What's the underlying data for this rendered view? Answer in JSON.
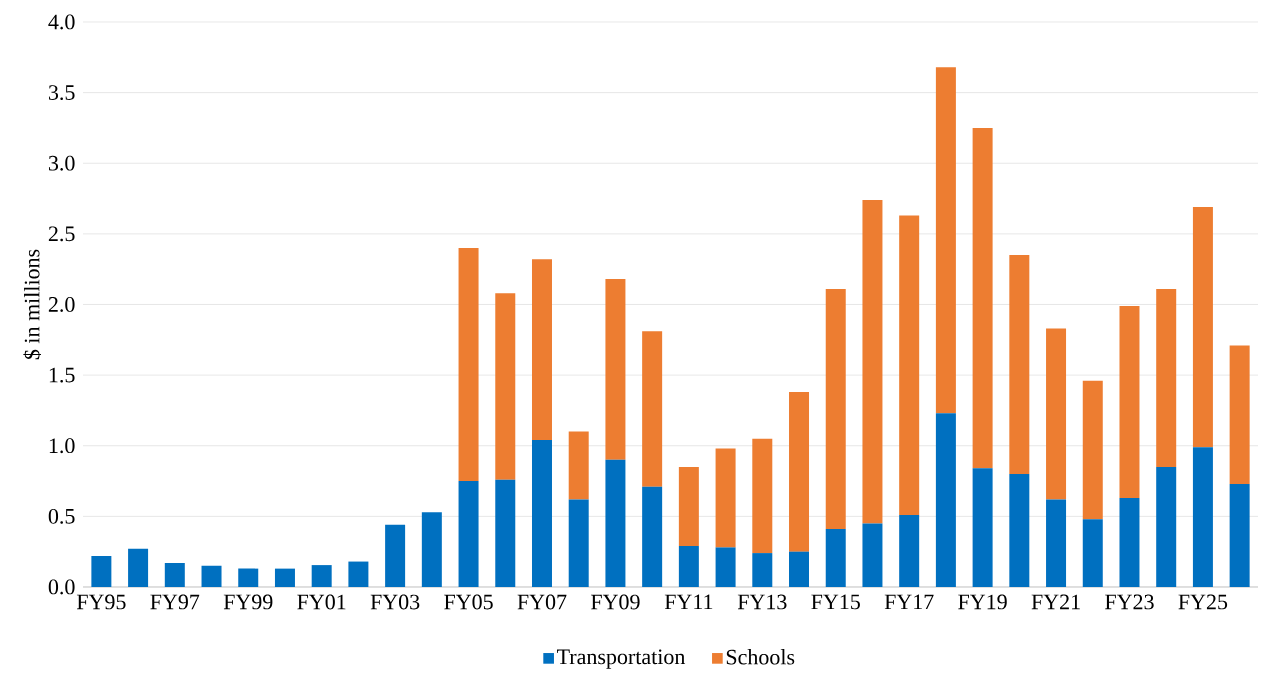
{
  "chart_data": {
    "type": "bar",
    "stacked": true,
    "ylabel": "$ in millions",
    "categories": [
      "FY95",
      null,
      "FY97",
      null,
      "FY99",
      null,
      "FY01",
      null,
      "FY03",
      null,
      "FY05",
      null,
      "FY07",
      null,
      "FY09",
      null,
      "FY11",
      null,
      "FY13",
      null,
      "FY15",
      null,
      "FY17",
      null,
      "FY19",
      null,
      "FY21",
      null,
      "FY23",
      null,
      "FY25",
      null
    ],
    "series": [
      {
        "name": "Transportation",
        "color": "#0070c0",
        "values": [
          0.22,
          0.27,
          0.17,
          0.15,
          0.13,
          0.13,
          0.155,
          0.18,
          0.44,
          0.53,
          0.75,
          0.76,
          1.04,
          0.62,
          0.9,
          0.71,
          0.29,
          0.28,
          0.24,
          0.25,
          0.41,
          0.45,
          0.51,
          1.23,
          0.84,
          0.8,
          0.62,
          0.48,
          0.63,
          0.85,
          0.99,
          0.73
        ]
      },
      {
        "name": "Schools",
        "color": "#ed7d31",
        "values": [
          null,
          null,
          null,
          null,
          null,
          null,
          null,
          null,
          null,
          null,
          1.65,
          1.32,
          1.28,
          0.48,
          1.28,
          1.1,
          0.56,
          0.7,
          0.81,
          1.13,
          1.7,
          2.29,
          2.12,
          2.45,
          2.41,
          1.55,
          1.21,
          0.98,
          1.36,
          1.26,
          1.7,
          0.98
        ]
      }
    ],
    "ylim": [
      0,
      4.0
    ],
    "yticks": [
      {
        "value": 0,
        "label": "0.0"
      },
      {
        "value": 0.5,
        "label": "0.5"
      },
      {
        "value": 1.0,
        "label": "1.0"
      },
      {
        "value": 1.5,
        "label": "1.5"
      },
      {
        "value": 2.0,
        "label": "2.0"
      },
      {
        "value": 2.5,
        "label": "2.5"
      },
      {
        "value": 3.0,
        "label": "3.0"
      },
      {
        "value": 3.5,
        "label": "3.5"
      },
      {
        "value": 4.0,
        "label": "4.0"
      }
    ],
    "grid": "y",
    "legend": "bottom"
  }
}
